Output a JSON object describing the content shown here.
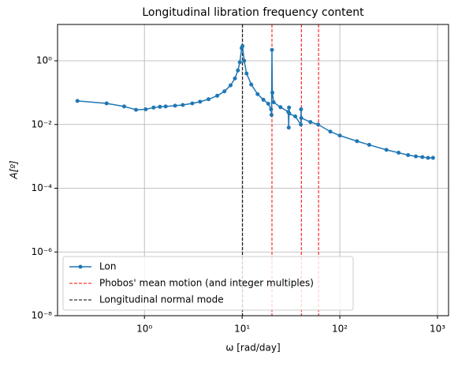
{
  "chart_data": {
    "type": "line",
    "title": "Longitudinal libration frequency content",
    "xlabel": "ω [rad/day]",
    "ylabel": "A[º]",
    "xscale": "log",
    "yscale": "log",
    "grid": true,
    "legend": "lower left",
    "xlim": [
      0.129,
      1297
    ],
    "ylim": [
      1e-08,
      13.8
    ],
    "xticks": [
      {
        "value": 1,
        "label": "10⁰"
      },
      {
        "value": 10,
        "label": "10¹"
      },
      {
        "value": 100,
        "label": "10²"
      },
      {
        "value": 1000,
        "label": "10³"
      }
    ],
    "yticks": [
      {
        "value": 1e-08,
        "label": "10⁻⁸"
      },
      {
        "value": 1e-06,
        "label": "10⁻⁶"
      },
      {
        "value": 0.0001,
        "label": "10⁻⁴"
      },
      {
        "value": 0.01,
        "label": "10⁻²"
      },
      {
        "value": 1,
        "label": "10⁰"
      }
    ],
    "series": [
      {
        "name": "Lon",
        "color": "#1f77b4",
        "x": [
          0.206,
          0.41,
          0.62,
          0.82,
          1.03,
          1.24,
          1.44,
          1.65,
          2.06,
          2.47,
          3.09,
          3.71,
          4.53,
          5.56,
          6.59,
          7.62,
          8.44,
          9.06,
          9.47,
          9.89,
          10.09,
          10.5,
          11.1,
          12.4,
          14.4,
          16.5,
          18.5,
          19.8,
          20.0,
          20.2,
          20.4,
          21,
          24.7,
          29.7,
          30.0,
          30.2,
          30.4,
          35,
          39.9,
          40.1,
          40.3,
          50,
          60,
          80,
          100,
          150,
          200,
          300,
          400,
          500,
          600,
          700,
          800,
          900
        ],
        "values": [
          0.055,
          0.046,
          0.037,
          0.029,
          0.03,
          0.034,
          0.036,
          0.037,
          0.039,
          0.041,
          0.046,
          0.052,
          0.062,
          0.08,
          0.11,
          0.17,
          0.28,
          0.5,
          0.9,
          2.5,
          2.9,
          1.0,
          0.4,
          0.18,
          0.09,
          0.06,
          0.045,
          0.03,
          0.02,
          2.2,
          0.1,
          0.05,
          0.035,
          0.025,
          0.008,
          0.034,
          0.022,
          0.018,
          0.01,
          0.03,
          0.016,
          0.012,
          0.01,
          0.006,
          0.0045,
          0.003,
          0.0023,
          0.0016,
          0.0013,
          0.0011,
          0.001,
          0.00095,
          0.0009,
          0.0009
        ]
      }
    ],
    "reference_lines": [
      {
        "name": "Phobos' mean motion (and integer multiples)",
        "color": "#ff0000",
        "x": [
          20.2,
          40.4,
          60.6
        ]
      },
      {
        "name": "Longitudinal normal mode",
        "color": "#000000",
        "x": [
          10.1
        ]
      }
    ]
  }
}
